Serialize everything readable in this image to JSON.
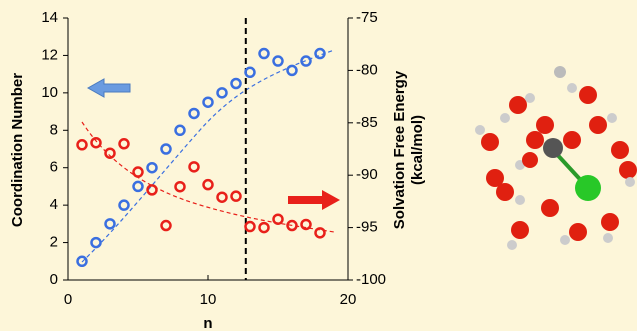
{
  "chart_data": {
    "type": "scatter",
    "xlabel": "n",
    "ylabel": "Coordination Number",
    "y2label": [
      "Solvation Free Energy",
      "(kcal/mol)"
    ],
    "x": [
      1,
      2,
      3,
      4,
      5,
      6,
      7,
      8,
      9,
      10,
      11,
      12,
      13,
      14,
      15,
      16,
      17,
      18
    ],
    "series": [
      {
        "color": "#3a6fe0",
        "values": [
          1,
          2,
          3,
          4,
          5,
          6,
          7,
          8,
          8.9,
          9.5,
          10,
          10.5,
          11.1,
          12.1,
          11.7,
          11.2,
          11.7,
          12.1
        ]
      },
      {
        "color": "#e8201a",
        "axis": "y2",
        "values": [
          -87.1,
          -86.9,
          -87.9,
          -87,
          -89.7,
          -91.4,
          -94.8,
          -91.1,
          -89.2,
          -90.9,
          -92.1,
          -92,
          -94.9,
          -95,
          -94.2,
          -94.8,
          -94.7,
          -95.5
        ]
      }
    ],
    "xlim": [
      0,
      20
    ],
    "xticks": [
      0,
      10,
      20
    ],
    "ylim": [
      0,
      14
    ],
    "yticks": [
      0,
      2,
      4,
      6,
      8,
      10,
      12,
      14
    ],
    "y2lim": [
      -100,
      -75
    ],
    "y2ticks": [
      -100,
      -95,
      -90,
      -85,
      -80,
      -75
    ],
    "vline": 12.7
  }
}
